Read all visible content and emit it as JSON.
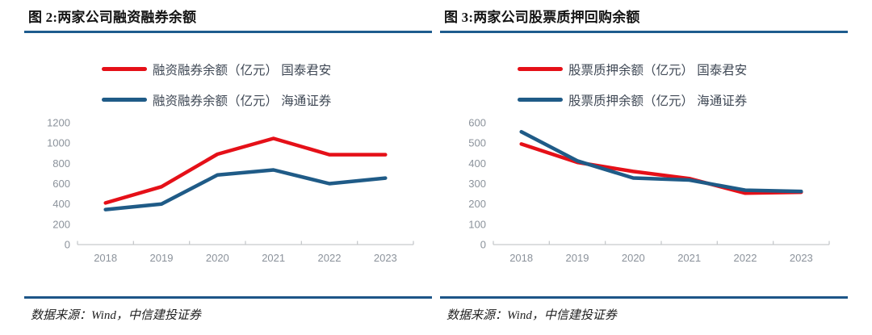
{
  "colors": {
    "accent_red": "#e51018",
    "accent_blue": "#1f5b87",
    "rule_blue": "#1e5c8e",
    "axis_line": "#c6c9cc",
    "axis_text": "#8b929b",
    "legend_text": "#3f4855",
    "title_text": "#141414"
  },
  "chart_data": [
    {
      "type": "line",
      "title": "图 2:两家公司融资融券余额",
      "source_note": "数据来源：Wind，中信建投证券",
      "categories": [
        "2018",
        "2019",
        "2020",
        "2021",
        "2022",
        "2023"
      ],
      "series": [
        {
          "name": "融资融券余额（亿元） 国泰君安",
          "color": "#e51018",
          "values": [
            410,
            570,
            890,
            1045,
            885,
            885
          ]
        },
        {
          "name": "融资融券余额（亿元） 海通证券",
          "color": "#1f5b87",
          "values": [
            345,
            400,
            685,
            735,
            600,
            655
          ]
        }
      ],
      "xlabel": "",
      "ylabel": "",
      "ylim": [
        0,
        1200
      ],
      "ytick_step": 200,
      "grid": false,
      "legend_position": "top"
    },
    {
      "type": "line",
      "title": "图 3:两家公司股票质押回购余额",
      "source_note": "数据来源：Wind，中信建投证券",
      "categories": [
        "2018",
        "2019",
        "2020",
        "2021",
        "2022",
        "2023"
      ],
      "series": [
        {
          "name": "股票质押余额（亿元） 国泰君安",
          "color": "#e51018",
          "values": [
            495,
            405,
            360,
            325,
            253,
            258
          ]
        },
        {
          "name": "股票质押余额（亿元） 海通证券",
          "color": "#1f5b87",
          "values": [
            555,
            412,
            328,
            318,
            268,
            262
          ]
        }
      ],
      "xlabel": "",
      "ylabel": "",
      "ylim": [
        0,
        600
      ],
      "ytick_step": 100,
      "grid": false,
      "legend_position": "top"
    }
  ]
}
